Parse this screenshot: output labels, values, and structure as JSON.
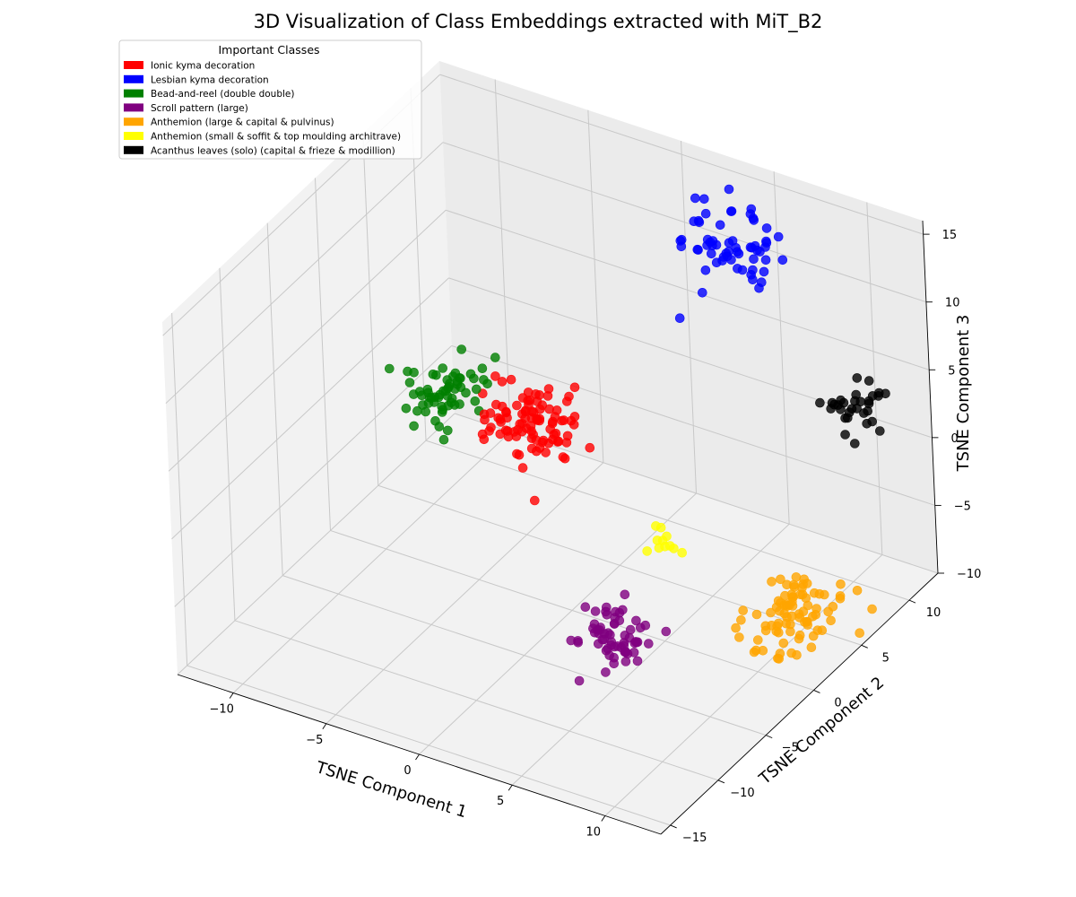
{
  "chart_data": {
    "type": "scatter",
    "projection": "3d",
    "title": "3D Visualization of Class Embeddings extracted with MiT_B2",
    "xlabel": "TSNE Component 1",
    "ylabel": "TSNE Component 2",
    "zlabel": "TSNE Component 3",
    "xlim": [
      -13,
      13
    ],
    "ylim": [
      -16,
      13
    ],
    "zlim": [
      -10,
      16
    ],
    "x_ticks": [
      -10,
      -5,
      0,
      5,
      10
    ],
    "y_ticks": [
      -15,
      -10,
      -5,
      0,
      5,
      10
    ],
    "z_ticks": [
      -10,
      -5,
      0,
      5,
      10,
      15
    ],
    "grid": true,
    "legend_title": "Important Classes",
    "legend_position": "top-left",
    "series": [
      {
        "name": "Ionic kyma decoration",
        "color": "#ff0000",
        "center": [
          -4.5,
          5,
          -1.5
        ],
        "spread": [
          2.2,
          2.2,
          2.2
        ],
        "count": 95
      },
      {
        "name": "Lesbian kyma decoration",
        "color": "#0000ff",
        "center": [
          3,
          12,
          10.5
        ],
        "spread": [
          2.2,
          1.6,
          2.2
        ],
        "count": 62
      },
      {
        "name": "Bead-and-reel (double double)",
        "color": "#008000",
        "center": [
          -9,
          5,
          -1.5
        ],
        "spread": [
          1.8,
          1.6,
          1.8
        ],
        "count": 62
      },
      {
        "name": "Scroll pattern (large)",
        "color": "#800080",
        "center": [
          5,
          -5,
          -6.5
        ],
        "spread": [
          1.4,
          1.8,
          1.4
        ],
        "count": 62
      },
      {
        "name": "Anthemion (large & capital & pulvinus)",
        "color": "#ffa500",
        "center": [
          11,
          2,
          -6.5
        ],
        "spread": [
          1.8,
          2.4,
          1.8
        ],
        "count": 85
      },
      {
        "name": "Anthemion (small & soffit & top moulding architrave)",
        "color": "#ffff00",
        "center": [
          3.5,
          3,
          -5.5
        ],
        "spread": [
          0.7,
          0.8,
          0.7
        ],
        "count": 11
      },
      {
        "name": "Acanthus leaves (solo) (capital & frieze & modillion)",
        "color": "#000000",
        "center": [
          9.5,
          12,
          1.5
        ],
        "spread": [
          1.3,
          1.3,
          1.3
        ],
        "count": 31
      }
    ]
  }
}
